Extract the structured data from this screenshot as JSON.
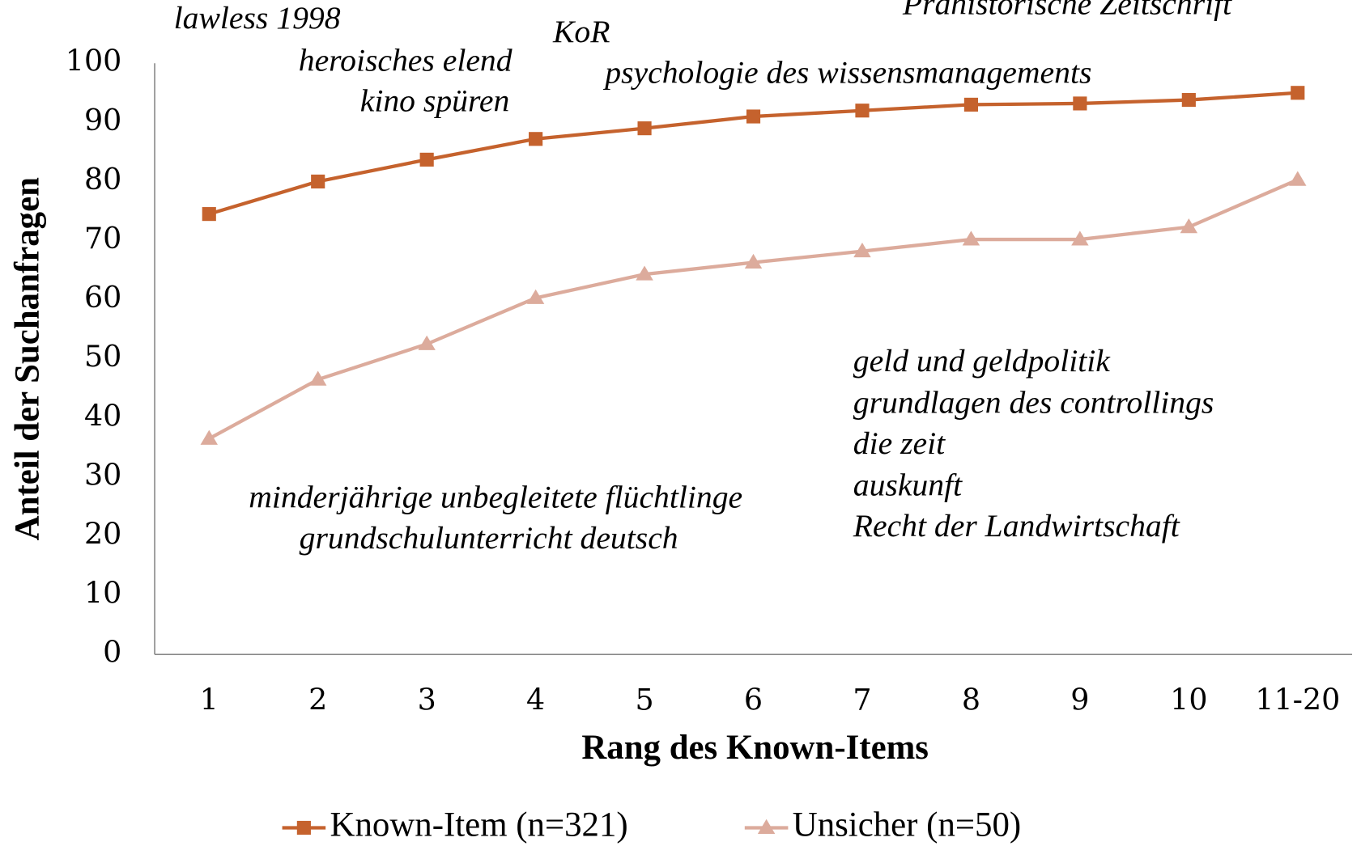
{
  "chart_data": {
    "type": "line",
    "x_label": "Rang des Known-Items",
    "y_label": "Anteil der Suchanfragen",
    "categories": [
      "1",
      "2",
      "3",
      "4",
      "5",
      "6",
      "7",
      "8",
      "9",
      "10",
      "11-20"
    ],
    "series": [
      {
        "name": "Known-Item (n=321)",
        "color": "#c5622d",
        "marker": "square",
        "values": [
          74.5,
          80,
          83.7,
          87.2,
          89,
          91,
          92,
          93,
          93.2,
          93.8,
          95
        ]
      },
      {
        "name": "Unsicher (n=50)",
        "color": "#dcab9c",
        "marker": "triangle",
        "values": [
          36.5,
          46.5,
          52.5,
          60.3,
          64.3,
          66.3,
          68.2,
          70.2,
          70.2,
          72.3,
          80.3
        ]
      }
    ],
    "ylim": [
      0,
      100
    ],
    "yticks": [
      0,
      10,
      20,
      30,
      40,
      50,
      60,
      70,
      80,
      90,
      100
    ],
    "grid": false,
    "legend": "bottom",
    "annotations": [
      "lawless 1998",
      "Prähistorische Zeitschrift",
      "KoR",
      "heroisches elend",
      "kino spüren",
      "psychologie des wissensmanagements",
      "geld und geldpolitik",
      "grundlagen des controllings",
      "die zeit",
      "auskunft",
      "Recht der Landwirtschaft",
      "minderjährige unbegleitete flüchtlinge",
      "grundschulunterricht deutsch"
    ]
  }
}
